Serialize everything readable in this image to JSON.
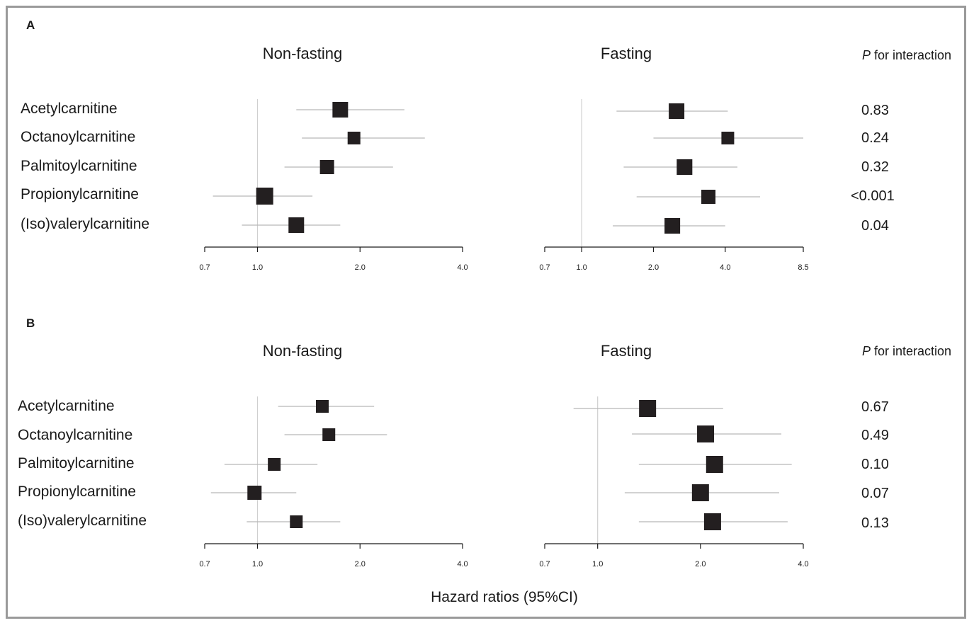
{
  "chart_data": [
    {
      "type": "forest",
      "panel": "A",
      "p_header_prefix": "P",
      "p_header_rest": " for interaction",
      "labels": [
        "Acetylcarnitine",
        "Octanoylcarnitine",
        "Palmitoylcarnitine",
        "Propionylcarnitine",
        "(Iso)valerylcarnitine"
      ],
      "p_values": [
        "0.83",
        "0.24",
        "0.32",
        "<0.001",
        "0.04"
      ],
      "plots": [
        {
          "title": "Non-fasting",
          "x_scale": "log",
          "xlim": [
            0.7,
            4.0
          ],
          "ticks": [
            0.7,
            1.0,
            2.0,
            4.0
          ],
          "tick_labels": [
            "0.7",
            "1.0",
            "2.0",
            "4.0"
          ],
          "ref": 1.0,
          "hr": [
            1.75,
            1.92,
            1.6,
            1.05,
            1.3
          ],
          "ci_low": [
            1.3,
            1.35,
            1.2,
            0.74,
            0.9
          ],
          "ci_high": [
            2.7,
            3.1,
            2.5,
            1.45,
            1.75
          ]
        },
        {
          "title": "Fasting",
          "x_scale": "log",
          "xlim": [
            0.7,
            8.5
          ],
          "ticks": [
            0.7,
            1.0,
            2.0,
            4.0,
            8.5
          ],
          "tick_labels": [
            "0.7",
            "1.0",
            "2.0",
            "4.0",
            "8.5"
          ],
          "ref": 1.0,
          "hr": [
            2.5,
            4.1,
            2.7,
            3.4,
            2.4
          ],
          "ci_low": [
            1.4,
            2.0,
            1.5,
            1.7,
            1.35
          ],
          "ci_high": [
            4.1,
            8.5,
            4.5,
            5.6,
            4.0
          ]
        }
      ]
    },
    {
      "type": "forest",
      "panel": "B",
      "p_header_prefix": "P",
      "p_header_rest": " for interaction",
      "labels": [
        "Acetylcarnitine",
        "Octanoylcarnitine",
        "Palmitoylcarnitine",
        "Propionylcarnitine",
        "(Iso)valerylcarnitine"
      ],
      "p_values": [
        "0.67",
        "0.49",
        "0.10",
        "0.07",
        "0.13"
      ],
      "plots": [
        {
          "title": "Non-fasting",
          "x_scale": "log",
          "xlim": [
            0.7,
            4.0
          ],
          "ticks": [
            0.7,
            1.0,
            2.0,
            4.0
          ],
          "tick_labels": [
            "0.7",
            "1.0",
            "2.0",
            "4.0"
          ],
          "ref": 1.0,
          "hr": [
            1.55,
            1.62,
            1.12,
            0.98,
            1.3
          ],
          "ci_low": [
            1.15,
            1.2,
            0.8,
            0.73,
            0.93
          ],
          "ci_high": [
            2.2,
            2.4,
            1.5,
            1.3,
            1.75
          ]
        },
        {
          "title": "Fasting",
          "x_scale": "log",
          "xlim": [
            0.7,
            4.0
          ],
          "ticks": [
            0.7,
            1.0,
            2.0,
            4.0
          ],
          "tick_labels": [
            "0.7",
            "1.0",
            "2.0",
            "4.0"
          ],
          "ref": 1.0,
          "hr": [
            1.4,
            2.07,
            2.2,
            2.0,
            2.17
          ],
          "ci_low": [
            0.85,
            1.26,
            1.32,
            1.2,
            1.32
          ],
          "ci_high": [
            2.33,
            3.45,
            3.7,
            3.4,
            3.6
          ]
        }
      ]
    }
  ],
  "xlabel": "Hazard ratios (95%CI)"
}
